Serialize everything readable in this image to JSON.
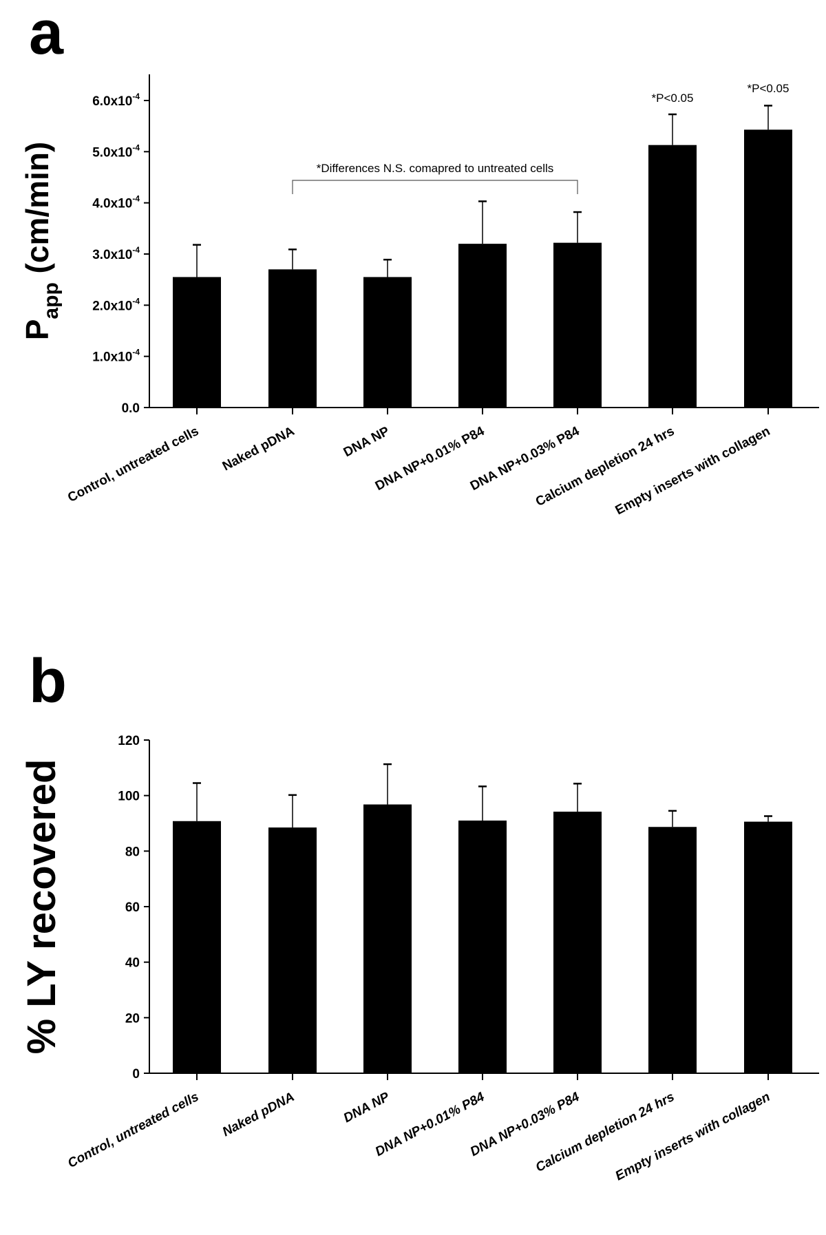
{
  "chart_data": [
    {
      "type": "bar",
      "panel_label": "a",
      "ylabel_main": "P",
      "ylabel_sub": "app",
      "ylabel_unit": " (cm/min)",
      "categories": [
        "Control, untreated cells",
        "Naked pDNA",
        "DNA NP",
        "DNA NP+0.01% P84",
        "DNA NP+0.03% P84",
        "Calcium depletion 24 hrs",
        "Empty inserts with collagen"
      ],
      "values": [
        0.000255,
        0.00027,
        0.000255,
        0.00032,
        0.000322,
        0.000513,
        0.000543
      ],
      "error_upper": [
        0.000318,
        0.000309,
        0.000289,
        0.000403,
        0.000382,
        0.000573,
        0.00059
      ],
      "ylim": [
        0,
        0.00065
      ],
      "yticks": [
        {
          "value": 0,
          "label": "0.0",
          "exp": ""
        },
        {
          "value": 0.0001,
          "label": "1.0x10",
          "exp": "-4"
        },
        {
          "value": 0.0002,
          "label": "2.0x10",
          "exp": "-4"
        },
        {
          "value": 0.0003,
          "label": "3.0x10",
          "exp": "-4"
        },
        {
          "value": 0.0004,
          "label": "4.0x10",
          "exp": "-4"
        },
        {
          "value": 0.0005,
          "label": "5.0x10",
          "exp": "-4"
        },
        {
          "value": 0.0006,
          "label": "6.0x10",
          "exp": "-4"
        }
      ],
      "annotations": {
        "bracket_text": "*Differences N.S. comapred to untreated cells",
        "sig_5": "*P<0.05",
        "sig_6": "*P<0.05"
      },
      "bar_color": "#000000",
      "grid": false
    },
    {
      "type": "bar",
      "panel_label": "b",
      "ylabel": "% LY recovered",
      "categories": [
        "Control, untreated cells",
        "Naked pDNA",
        "DNA NP",
        "DNA NP+0.01% P84",
        "DNA NP+0.03% P84",
        "Calcium depletion 24 hrs",
        "Empty inserts with collagen"
      ],
      "values": [
        90.8,
        88.5,
        96.8,
        91.0,
        94.2,
        88.7,
        90.6
      ],
      "error_upper": [
        104.5,
        100.2,
        111.3,
        103.3,
        104.3,
        94.5,
        92.6
      ],
      "ylim": [
        0,
        120
      ],
      "yticks": [
        {
          "value": 0,
          "label": "0"
        },
        {
          "value": 20,
          "label": "20"
        },
        {
          "value": 40,
          "label": "40"
        },
        {
          "value": 60,
          "label": "60"
        },
        {
          "value": 80,
          "label": "80"
        },
        {
          "value": 100,
          "label": "100"
        },
        {
          "value": 120,
          "label": "120"
        }
      ],
      "bar_color": "#000000",
      "grid": false
    }
  ]
}
